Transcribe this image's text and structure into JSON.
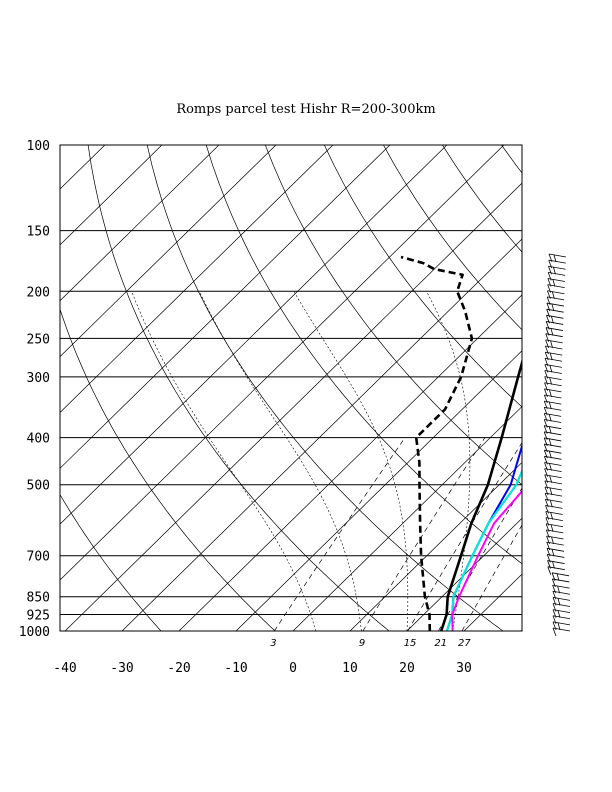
{
  "chart_data": {
    "type": "skew-t",
    "title": "Romps parcel test Hishr R=200-300km",
    "y_axis": {
      "scale": "log",
      "range": [
        1000,
        100
      ],
      "tick_values": [
        100,
        150,
        200,
        250,
        300,
        400,
        500,
        700,
        850,
        925,
        1000
      ],
      "tick_labels": [
        "100",
        "150",
        "200",
        "250",
        "300",
        "400",
        "500",
        "700",
        "850",
        "925",
        "1000"
      ]
    },
    "x_axis": {
      "range": [
        -40,
        40
      ],
      "tick_values": [
        -40,
        -30,
        -20,
        -10,
        0,
        10,
        20,
        30
      ],
      "tick_labels": [
        "-40",
        "-30",
        "-20",
        "-10",
        "0",
        "10",
        "20",
        "30"
      ]
    },
    "mixing_ratio_labels": [
      "3",
      "9",
      "15",
      "21",
      "27"
    ],
    "grid": true,
    "series": [
      {
        "color": "#000000",
        "style": "solid",
        "points": [
          [
            1000,
            26
          ],
          [
            925,
            24
          ],
          [
            850,
            21
          ],
          [
            700,
            16
          ],
          [
            600,
            12
          ],
          [
            500,
            8
          ],
          [
            400,
            2
          ],
          [
            300,
            -6
          ],
          [
            250,
            -11
          ],
          [
            200,
            -17
          ],
          [
            170,
            -22
          ],
          [
            150,
            -26
          ],
          [
            140,
            -29
          ],
          [
            130,
            -31
          ],
          [
            120,
            -33
          ],
          [
            110,
            -32
          ],
          [
            100,
            -30
          ]
        ]
      },
      {
        "color": "#000000",
        "style": "dashed",
        "points": [
          [
            1000,
            24
          ],
          [
            925,
            21
          ],
          [
            850,
            17
          ],
          [
            700,
            9
          ],
          [
            600,
            3
          ],
          [
            500,
            -4
          ],
          [
            450,
            -8
          ],
          [
            400,
            -13
          ],
          [
            350,
            -13
          ],
          [
            300,
            -16
          ],
          [
            250,
            -21
          ],
          [
            220,
            -27
          ],
          [
            200,
            -32
          ],
          [
            185,
            -34
          ],
          [
            180,
            -40
          ],
          [
            175,
            -43
          ],
          [
            170,
            -48
          ]
        ]
      },
      {
        "color": "#0000ee",
        "style": "solid",
        "points": [
          [
            1000,
            27
          ],
          [
            925,
            25
          ],
          [
            850,
            22
          ],
          [
            700,
            18
          ],
          [
            600,
            15
          ],
          [
            500,
            12
          ],
          [
            400,
            6
          ],
          [
            300,
            -3
          ],
          [
            250,
            -9
          ],
          [
            200,
            -16
          ],
          [
            150,
            -26
          ],
          [
            120,
            -37
          ],
          [
            100,
            -44
          ]
        ]
      },
      {
        "color": "#00bb00",
        "style": "solid",
        "points": [
          [
            1000,
            27
          ],
          [
            925,
            25
          ],
          [
            850,
            22
          ],
          [
            700,
            18
          ],
          [
            600,
            15
          ],
          [
            500,
            13
          ],
          [
            400,
            8
          ],
          [
            300,
            0
          ],
          [
            250,
            -6
          ],
          [
            200,
            -14
          ],
          [
            150,
            -24
          ],
          [
            120,
            -33
          ],
          [
            100,
            -40
          ]
        ]
      },
      {
        "color": "#00e5e5",
        "style": "solid",
        "points": [
          [
            1000,
            27
          ],
          [
            925,
            25
          ],
          [
            850,
            22
          ],
          [
            700,
            18
          ],
          [
            600,
            15
          ],
          [
            500,
            13
          ],
          [
            400,
            8
          ],
          [
            300,
            1
          ],
          [
            250,
            -5
          ],
          [
            200,
            -12
          ],
          [
            150,
            -21
          ],
          [
            120,
            -30
          ],
          [
            100,
            -37
          ]
        ]
      },
      {
        "color": "#ff00ff",
        "style": "solid",
        "points": [
          [
            1000,
            28
          ],
          [
            925,
            25
          ],
          [
            850,
            23
          ],
          [
            700,
            19
          ],
          [
            600,
            16
          ],
          [
            500,
            15
          ],
          [
            400,
            10
          ],
          [
            300,
            4
          ],
          [
            250,
            -1
          ],
          [
            200,
            -9
          ],
          [
            150,
            -19
          ],
          [
            120,
            -27
          ],
          [
            100,
            -33
          ]
        ]
      }
    ],
    "wind_barbs": {
      "pressure_top": 170,
      "pressure_bottom": 1000,
      "count": 62
    }
  }
}
